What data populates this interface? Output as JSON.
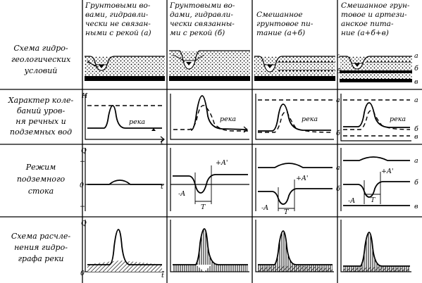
{
  "columns": [
    [
      "Грунтовыми во-",
      "вами, гидравли-",
      "чески не связан-",
      "ными с рекой (а)"
    ],
    [
      "Грунтовыми во-",
      "дами, гидравли-",
      "чески связанны-",
      "ми с рекой (б)"
    ],
    [
      "Смешанное",
      "грунтовое пи-",
      "тание (а+б)"
    ],
    [
      "Смешанное грун-",
      "товое и артези-",
      "анское пита-",
      "ние (а+б+в)"
    ]
  ],
  "rows": [
    [
      "Схема гидро-",
      "геологических",
      "условий"
    ],
    [
      "Характер коле-",
      "баний уров-",
      "ня речных и",
      "подземных вод"
    ],
    [
      "Режим",
      "подземного",
      "стока"
    ],
    [
      "Схема расчле-",
      "нения гидро-",
      "графа реки"
    ]
  ],
  "marks": {
    "a": "а",
    "b": "б",
    "v": "в",
    "reka": "река",
    "H": "H",
    "Q": "Q",
    "t": "t",
    "zero": "0",
    "plus": "+",
    "minus": "−",
    "plusA": "+A'",
    "minusA": "-A",
    "T": "T"
  }
}
